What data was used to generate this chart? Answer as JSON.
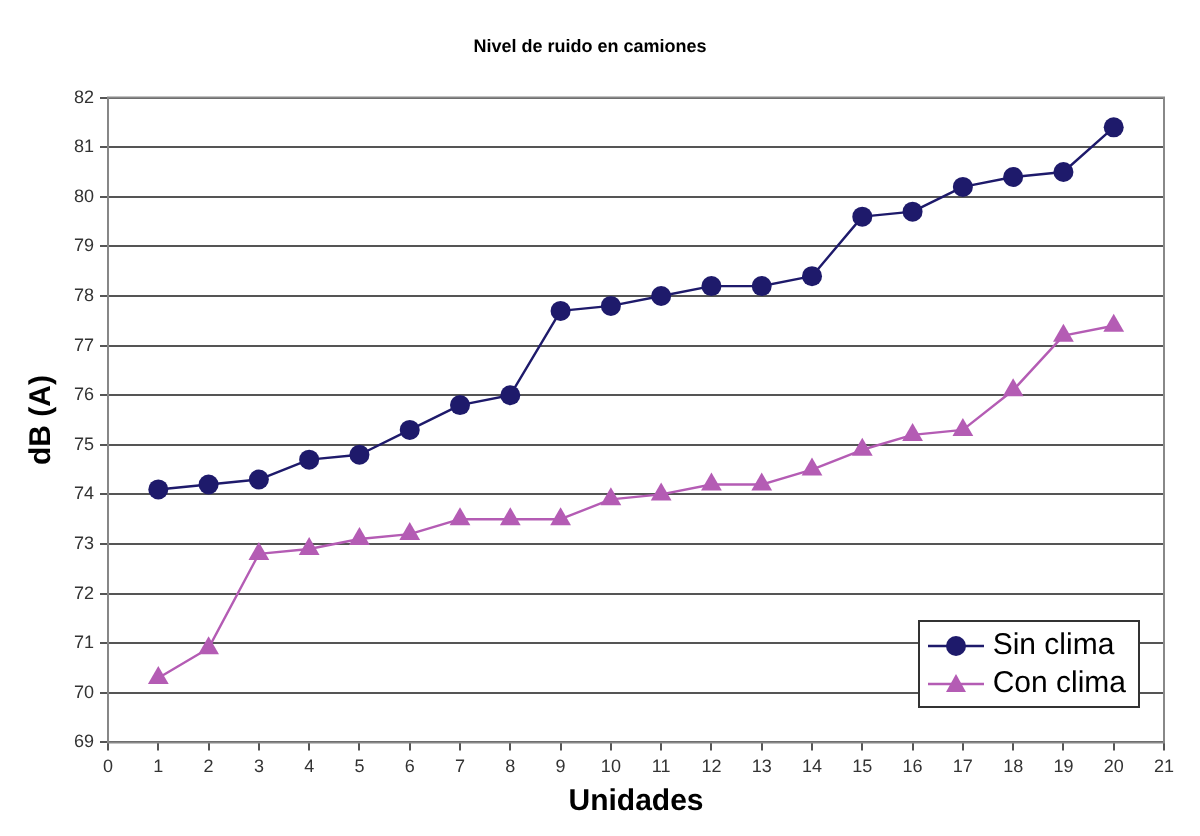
{
  "chart_data": {
    "type": "line",
    "title": "Nivel de ruido en camiones",
    "xlabel": "Unidades",
    "ylabel": "dB (A)",
    "x": [
      1,
      2,
      3,
      4,
      5,
      6,
      7,
      8,
      9,
      10,
      11,
      12,
      13,
      14,
      15,
      16,
      17,
      18,
      19,
      20
    ],
    "series": [
      {
        "name": "Sin clima",
        "color": "#1e1a6b",
        "marker": "circle",
        "values": [
          74.1,
          74.2,
          74.3,
          74.7,
          74.8,
          75.3,
          75.8,
          76.0,
          77.7,
          77.8,
          78.0,
          78.2,
          78.2,
          78.4,
          79.6,
          79.7,
          80.2,
          80.4,
          80.5,
          81.4
        ]
      },
      {
        "name": "Con clima",
        "color": "#b45cb4",
        "marker": "triangle",
        "values": [
          70.3,
          70.9,
          72.8,
          72.9,
          73.1,
          73.2,
          73.5,
          73.5,
          73.5,
          73.9,
          74.0,
          74.2,
          74.2,
          74.5,
          74.9,
          75.2,
          75.3,
          76.1,
          77.2,
          77.4
        ]
      }
    ],
    "xlim": [
      0,
      21
    ],
    "xticks": [
      0,
      1,
      2,
      3,
      4,
      5,
      6,
      7,
      8,
      9,
      10,
      11,
      12,
      13,
      14,
      15,
      16,
      17,
      18,
      19,
      20,
      21
    ],
    "ylim": [
      69,
      82
    ],
    "yticks": [
      69,
      70,
      71,
      72,
      73,
      74,
      75,
      76,
      77,
      78,
      79,
      80,
      81,
      82
    ],
    "grid": "y",
    "legend": "bottom right",
    "line_style": "solid"
  }
}
